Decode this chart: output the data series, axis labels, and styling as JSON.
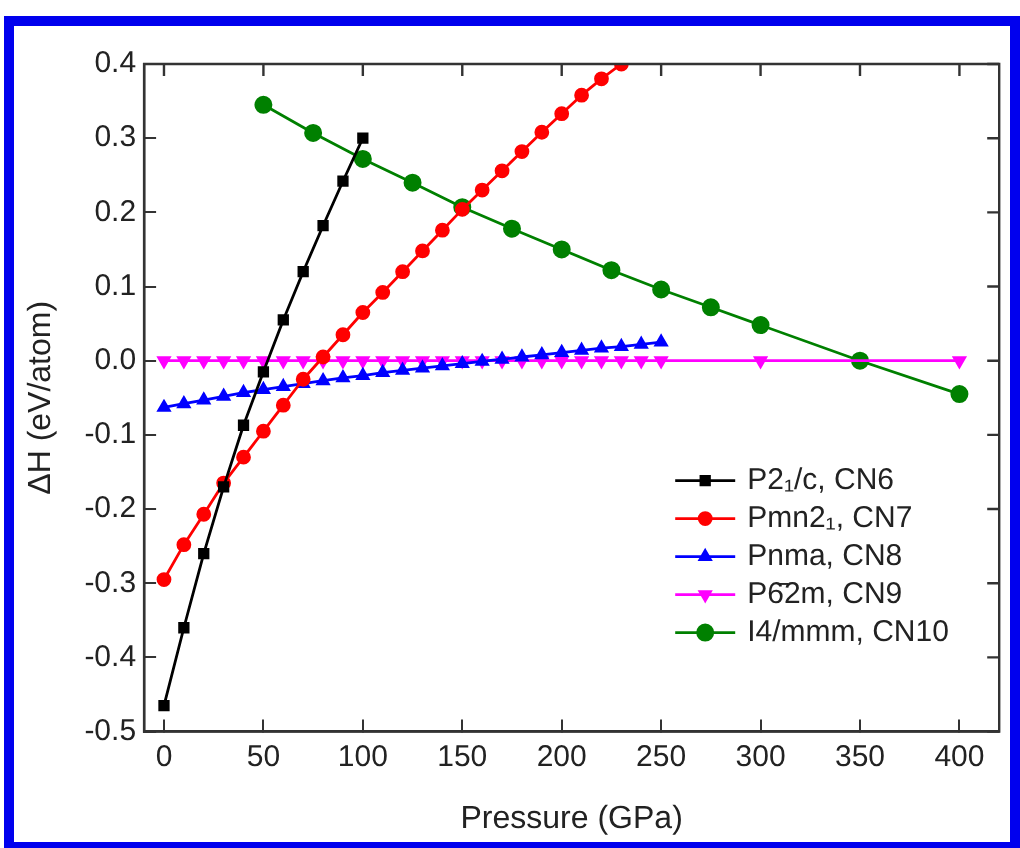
{
  "chart_data": {
    "type": "line",
    "xlabel": "Pressure (GPa)",
    "ylabel": "ΔH (eV/atom)",
    "xlim": [
      -10,
      420
    ],
    "xticks": [
      0,
      50,
      100,
      150,
      200,
      250,
      300,
      350,
      400
    ],
    "ylim": [
      -0.5,
      0.4
    ],
    "yticks": [
      -0.5,
      -0.4,
      -0.3,
      -0.2,
      -0.1,
      {
        "value": 0,
        "label": "0.0"
      },
      0.1,
      0.2,
      0.3,
      0.4
    ],
    "grid": false,
    "legend": "bottom right",
    "line_style": "solid",
    "series": [
      {
        "name": "P2₁/c, CN6",
        "color": "#000000",
        "marker": "square",
        "x": [
          0,
          10,
          20,
          30,
          40,
          50,
          60,
          70,
          80,
          90,
          100
        ],
        "values": [
          -0.465,
          -0.36,
          -0.26,
          -0.17,
          -0.087,
          -0.015,
          0.055,
          0.12,
          0.182,
          0.242,
          0.3
        ]
      },
      {
        "name": "Pmn2₁, CN7",
        "color": "#ff0000",
        "marker": "circle",
        "x": [
          0,
          10,
          20,
          30,
          40,
          50,
          60,
          70,
          80,
          90,
          100,
          110,
          120,
          130,
          140,
          150,
          160,
          170,
          180,
          190,
          200,
          210,
          220,
          230
        ],
        "values": [
          -0.295,
          -0.248,
          -0.207,
          -0.165,
          -0.13,
          -0.095,
          -0.06,
          -0.025,
          0.005,
          0.035,
          0.065,
          0.092,
          0.12,
          0.148,
          0.176,
          0.204,
          0.23,
          0.256,
          0.282,
          0.308,
          0.333,
          0.358,
          0.38,
          0.4
        ]
      },
      {
        "name": "Pnma, CN8",
        "color": "#0000ff",
        "marker": "triangle",
        "x": [
          0,
          10,
          20,
          30,
          40,
          50,
          60,
          70,
          80,
          90,
          100,
          110,
          120,
          130,
          140,
          150,
          160,
          170,
          180,
          190,
          200,
          210,
          220,
          230,
          240,
          250
        ],
        "values": [
          -0.063,
          -0.058,
          -0.053,
          -0.048,
          -0.043,
          -0.039,
          -0.035,
          -0.031,
          -0.027,
          -0.023,
          -0.02,
          -0.016,
          -0.013,
          -0.01,
          -0.007,
          -0.004,
          -0.001,
          0.002,
          0.005,
          0.008,
          0.011,
          0.014,
          0.017,
          0.019,
          0.022,
          0.025
        ]
      },
      {
        "name": "P6̄2m, CN9",
        "color": "#ff00ff",
        "marker": "triangle-down",
        "x": [
          0,
          10,
          20,
          30,
          40,
          50,
          60,
          70,
          80,
          90,
          100,
          110,
          120,
          130,
          140,
          150,
          160,
          170,
          180,
          190,
          200,
          210,
          220,
          230,
          240,
          250,
          300,
          400
        ],
        "values": [
          0,
          0,
          0,
          0,
          0,
          0,
          0,
          0,
          0,
          0,
          0,
          0,
          0,
          0,
          0,
          0,
          0,
          0,
          0,
          0,
          0,
          0,
          0,
          0,
          0,
          0,
          0,
          0
        ]
      },
      {
        "name": "I4/mmm, CN10",
        "color": "#008000",
        "marker": "circle",
        "x": [
          50,
          75,
          100,
          125,
          150,
          175,
          200,
          225,
          250,
          275,
          300,
          350,
          400
        ],
        "values": [
          0.345,
          0.307,
          0.272,
          0.24,
          0.207,
          0.178,
          0.15,
          0.122,
          0.096,
          0.072,
          0.048,
          0.0,
          -0.045
        ]
      }
    ]
  }
}
